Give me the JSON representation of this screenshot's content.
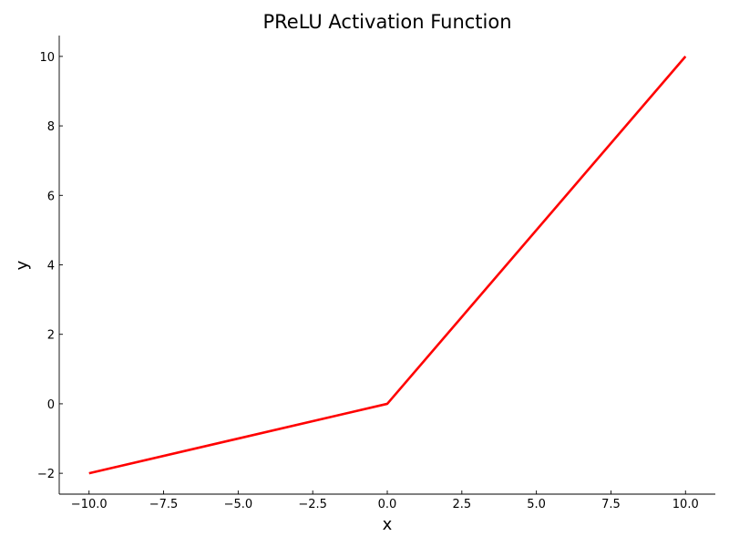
{
  "chart_data": {
    "type": "line",
    "title": "PReLU Activation Function",
    "xlabel": "x",
    "ylabel": "y",
    "xlim": [
      -11,
      11
    ],
    "ylim": [
      -2.6,
      10.6
    ],
    "xticks": [
      -10.0,
      -7.5,
      -5.0,
      -2.5,
      0.0,
      2.5,
      5.0,
      7.5,
      10.0
    ],
    "xtick_labels": [
      "−10.0",
      "−7.5",
      "−5.0",
      "−2.5",
      "0.0",
      "2.5",
      "5.0",
      "7.5",
      "10.0"
    ],
    "yticks": [
      -2,
      0,
      2,
      4,
      6,
      8,
      10
    ],
    "ytick_labels": [
      "−2",
      "0",
      "2",
      "4",
      "6",
      "8",
      "10"
    ],
    "grid": false,
    "series": [
      {
        "color": "#ff0000",
        "x": [
          -10,
          0,
          10
        ],
        "y": [
          -2,
          0,
          10
        ]
      }
    ]
  }
}
